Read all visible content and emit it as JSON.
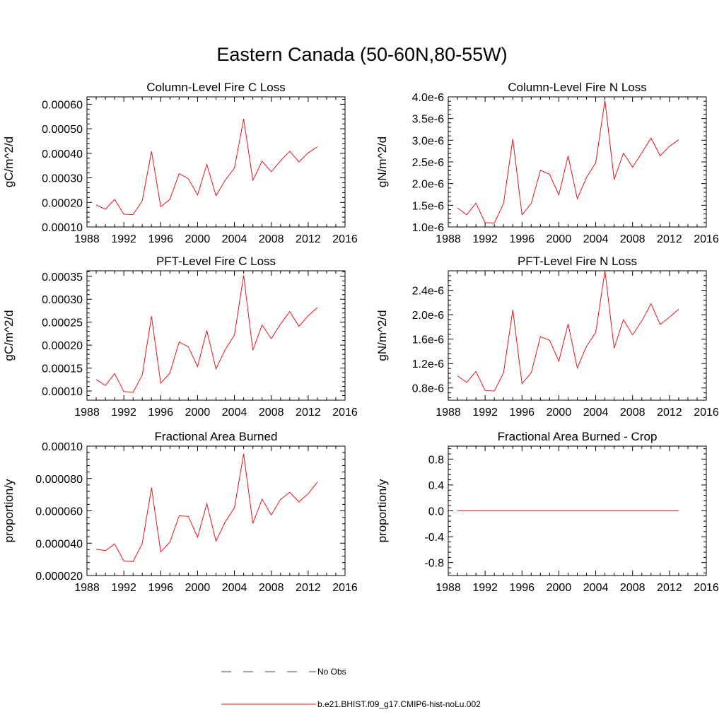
{
  "figure": {
    "title": "Eastern Canada (50-60N,80-55W)",
    "line_color": "#e8141a",
    "obs_color": "#3a3ab8"
  },
  "legend": {
    "entries": [
      {
        "label": "No Obs",
        "style": "dashed",
        "color": "#3a3ab8"
      },
      {
        "label": "b.e21.BHIST.f09_g17.CMIP6-hist-noLu.002",
        "style": "solid",
        "color": "#e8141a"
      }
    ]
  },
  "chart_data": [
    {
      "type": "line",
      "title": "Column-Level Fire C Loss",
      "ylabel": "gC/m^2/d",
      "xlim": [
        1988,
        2016
      ],
      "ylim": [
        0.0001,
        0.00063
      ],
      "xticks": [
        "1988",
        "1992",
        "1996",
        "2000",
        "2004",
        "2008",
        "2012",
        "2016"
      ],
      "yticks": [
        0.0001,
        0.0002,
        0.0003,
        0.0004,
        0.0005,
        0.0006
      ],
      "ytick_labels": [
        "0.00010",
        "0.00020",
        "0.00030",
        "0.00040",
        "0.00050",
        "0.00060"
      ],
      "series": [
        {
          "name": "b.e21.BHIST.f09_g17.CMIP6-hist-noLu.002",
          "x": [
            1989,
            1990,
            1991,
            1992,
            1993,
            1994,
            1995,
            1996,
            1997,
            1998,
            1999,
            2000,
            2001,
            2002,
            2003,
            2004,
            2005,
            2006,
            2007,
            2008,
            2009,
            2010,
            2011,
            2012,
            2013
          ],
          "values": [
            0.00019,
            0.000172,
            0.000212,
            0.000152,
            0.00015,
            0.000207,
            0.000408,
            0.000182,
            0.000213,
            0.000317,
            0.000297,
            0.00023,
            0.000355,
            0.000227,
            0.00029,
            0.00034,
            0.00054,
            0.00029,
            0.000368,
            0.000325,
            0.00037,
            0.000408,
            0.000365,
            0.000402,
            0.000427
          ]
        }
      ]
    },
    {
      "type": "line",
      "title": "Column-Level Fire N Loss",
      "ylabel": "gN/m^2/d",
      "xlim": [
        1988,
        2016
      ],
      "ylim": [
        1e-06,
        4e-06
      ],
      "xticks": [
        "1988",
        "1992",
        "1996",
        "2000",
        "2004",
        "2008",
        "2012",
        "2016"
      ],
      "yticks": [
        1e-06,
        1.5e-06,
        2e-06,
        2.5e-06,
        3e-06,
        3.5e-06,
        4e-06
      ],
      "ytick_labels": [
        "1.0e-6",
        "1.5e-6",
        "2.0e-6",
        "2.5e-6",
        "3.0e-6",
        "3.5e-6",
        "4.0e-6"
      ],
      "series": [
        {
          "name": "b.e21.BHIST.f09_g17.CMIP6-hist-noLu.002",
          "x": [
            1989,
            1990,
            1991,
            1992,
            1993,
            1994,
            1995,
            1996,
            1997,
            1998,
            1999,
            2000,
            2001,
            2002,
            2003,
            2004,
            2005,
            2006,
            2007,
            2008,
            2009,
            2010,
            2011,
            2012,
            2013
          ],
          "values": [
            1.44e-06,
            1.28e-06,
            1.55e-06,
            1.1e-06,
            1.09e-06,
            1.54e-06,
            3.03e-06,
            1.28e-06,
            1.54e-06,
            2.31e-06,
            2.21e-06,
            1.74e-06,
            2.64e-06,
            1.65e-06,
            2.14e-06,
            2.48e-06,
            3.92e-06,
            2.09e-06,
            2.7e-06,
            2.38e-06,
            2.71e-06,
            3.05e-06,
            2.64e-06,
            2.86e-06,
            3.01e-06
          ]
        }
      ]
    },
    {
      "type": "line",
      "title": "PFT-Level Fire C Loss",
      "ylabel": "gC/m^2/d",
      "xlim": [
        1988,
        2016
      ],
      "ylim": [
        8e-05,
        0.000362
      ],
      "xticks": [
        "1988",
        "1992",
        "1996",
        "2000",
        "2004",
        "2008",
        "2012",
        "2016"
      ],
      "yticks": [
        0.0001,
        0.00015,
        0.0002,
        0.00025,
        0.0003,
        0.00035
      ],
      "ytick_labels": [
        "0.00010",
        "0.00015",
        "0.00020",
        "0.00025",
        "0.00030",
        "0.00035"
      ],
      "series": [
        {
          "name": "b.e21.BHIST.f09_g17.CMIP6-hist-noLu.002",
          "x": [
            1989,
            1990,
            1991,
            1992,
            1993,
            1994,
            1995,
            1996,
            1997,
            1998,
            1999,
            2000,
            2001,
            2002,
            2003,
            2004,
            2005,
            2006,
            2007,
            2008,
            2009,
            2010,
            2011,
            2012,
            2013
          ],
          "values": [
            0.000125,
            0.000112,
            0.000138,
            9.9e-05,
            9.7e-05,
            0.000135,
            0.000263,
            0.000117,
            0.000139,
            0.000207,
            0.000196,
            0.000153,
            0.000232,
            0.000148,
            0.00019,
            0.000222,
            0.000352,
            0.000189,
            0.000244,
            0.000214,
            0.000246,
            0.000273,
            0.000241,
            0.000264,
            0.000282
          ]
        }
      ]
    },
    {
      "type": "line",
      "title": "PFT-Level Fire N Loss",
      "ylabel": "gN/m^2/d",
      "xlim": [
        1988,
        2016
      ],
      "ylim": [
        6e-07,
        2.72e-06
      ],
      "xticks": [
        "1988",
        "1992",
        "1996",
        "2000",
        "2004",
        "2008",
        "2012",
        "2016"
      ],
      "yticks": [
        8e-07,
        1.2e-06,
        1.6e-06,
        2e-06,
        2.4e-06
      ],
      "ytick_labels": [
        "0.8e-6",
        "1.2e-6",
        "1.6e-6",
        "2.0e-6",
        "2.4e-6"
      ],
      "series": [
        {
          "name": "b.e21.BHIST.f09_g17.CMIP6-hist-noLu.002",
          "x": [
            1989,
            1990,
            1991,
            1992,
            1993,
            1994,
            1995,
            1996,
            1997,
            1998,
            1999,
            2000,
            2001,
            2002,
            2003,
            2004,
            2005,
            2006,
            2007,
            2008,
            2009,
            2010,
            2011,
            2012,
            2013
          ],
          "values": [
            1e-06,
            8.9e-07,
            1.07e-06,
            7.6e-07,
            7.5e-07,
            1.05e-06,
            2.08e-06,
            8.7e-07,
            1.05e-06,
            1.64e-06,
            1.58e-06,
            1.24e-06,
            1.85e-06,
            1.13e-06,
            1.48e-06,
            1.71e-06,
            2.72e-06,
            1.45e-06,
            1.92e-06,
            1.67e-06,
            1.9e-06,
            2.18e-06,
            1.84e-06,
            1.96e-06,
            2.09e-06
          ]
        }
      ]
    },
    {
      "type": "line",
      "title": "Fractional Area Burned",
      "ylabel": "proportion/y",
      "xlim": [
        1988,
        2016
      ],
      "ylim": [
        2e-05,
        0.0001
      ],
      "xticks": [
        "1988",
        "1992",
        "1996",
        "2000",
        "2004",
        "2008",
        "2012",
        "2016"
      ],
      "yticks": [
        2e-05,
        4e-05,
        6e-05,
        8e-05,
        0.0001
      ],
      "ytick_labels": [
        "0.000020",
        "0.000040",
        "0.000060",
        "0.000080",
        "0.00010"
      ],
      "series": [
        {
          "name": "b.e21.BHIST.f09_g17.CMIP6-hist-noLu.002",
          "x": [
            1989,
            1990,
            1991,
            1992,
            1993,
            1994,
            1995,
            1996,
            1997,
            1998,
            1999,
            2000,
            2001,
            2002,
            2003,
            2004,
            2005,
            2006,
            2007,
            2008,
            2009,
            2010,
            2011,
            2012,
            2013
          ],
          "values": [
            3.63e-05,
            3.54e-05,
            3.95e-05,
            2.9e-05,
            2.86e-05,
            3.98e-05,
            7.43e-05,
            3.46e-05,
            4.06e-05,
            5.69e-05,
            5.66e-05,
            4.36e-05,
            6.44e-05,
            4.12e-05,
            5.31e-05,
            6.19e-05,
            9.52e-05,
            5.22e-05,
            6.72e-05,
            5.74e-05,
            6.71e-05,
            7.14e-05,
            6.55e-05,
            7.06e-05,
            7.78e-05
          ]
        }
      ]
    },
    {
      "type": "line",
      "title": "Fractional Area Burned - Crop",
      "ylabel": "proportion/y",
      "xlim": [
        1988,
        2016
      ],
      "ylim": [
        -1.0,
        1.0
      ],
      "xticks": [
        "1988",
        "1992",
        "1996",
        "2000",
        "2004",
        "2008",
        "2012",
        "2016"
      ],
      "yticks": [
        -0.8,
        -0.4,
        0.0,
        0.4,
        0.8
      ],
      "ytick_labels": [
        "-0.8",
        "-0.4",
        "0.0",
        "0.4",
        "0.8"
      ],
      "series": [
        {
          "name": "b.e21.BHIST.f09_g17.CMIP6-hist-noLu.002",
          "x": [
            1989,
            1990,
            1991,
            1992,
            1993,
            1994,
            1995,
            1996,
            1997,
            1998,
            1999,
            2000,
            2001,
            2002,
            2003,
            2004,
            2005,
            2006,
            2007,
            2008,
            2009,
            2010,
            2011,
            2012,
            2013
          ],
          "values": [
            0,
            0,
            0,
            0,
            0,
            0,
            0,
            0,
            0,
            0,
            0,
            0,
            0,
            0,
            0,
            0,
            0,
            0,
            0,
            0,
            0,
            0,
            0,
            0,
            0
          ]
        }
      ]
    }
  ]
}
